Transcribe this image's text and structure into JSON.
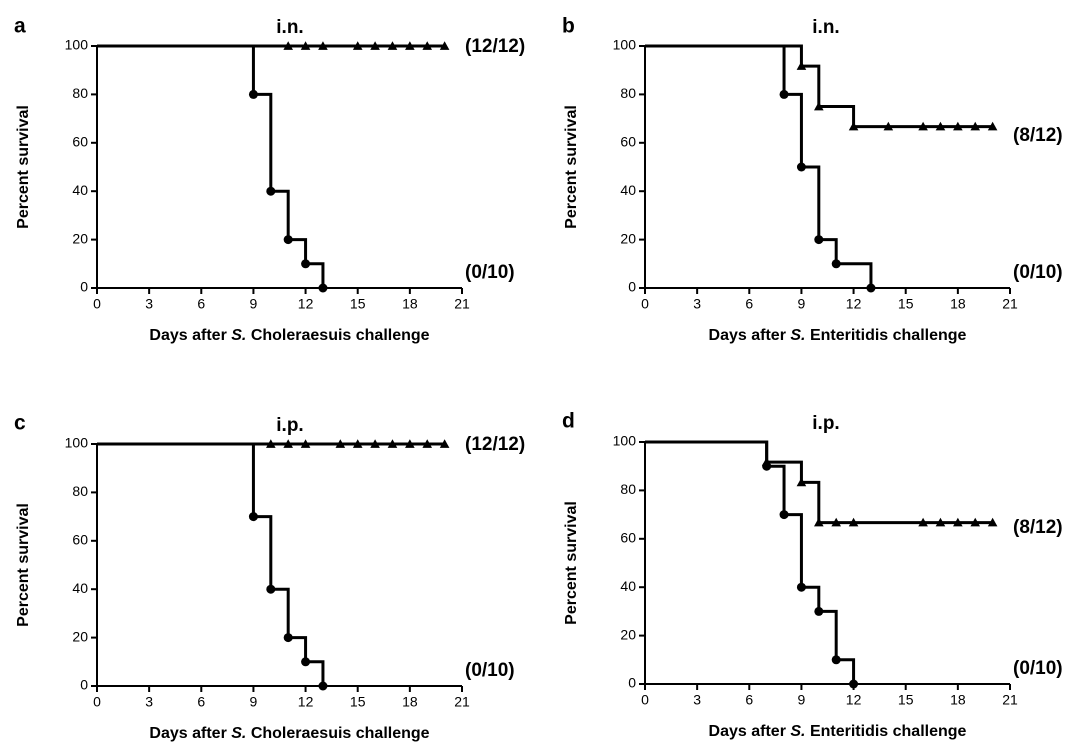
{
  "chart_data": [
    {
      "panel": "a",
      "type": "line",
      "title": "i.n.",
      "xlabel_parts": [
        "Days after ",
        "S.",
        " Choleraesuis challenge"
      ],
      "ylabel": "Percent survival",
      "xlim": [
        0,
        21
      ],
      "ylim": [
        0,
        100
      ],
      "xticks": [
        0,
        3,
        6,
        9,
        12,
        15,
        18,
        21
      ],
      "yticks": [
        0,
        20,
        40,
        60,
        80,
        100
      ],
      "series": [
        {
          "marker": "triangle",
          "steps": [
            [
              0,
              100
            ],
            [
              20,
              100
            ]
          ],
          "markers_x": [
            11,
            12,
            13,
            15,
            16,
            17,
            18,
            19,
            20
          ],
          "annotation": "(12/12)"
        },
        {
          "marker": "circle",
          "steps": [
            [
              0,
              100
            ],
            [
              9,
              80
            ],
            [
              10,
              40
            ],
            [
              11,
              20
            ],
            [
              12,
              10
            ],
            [
              13,
              0
            ]
          ],
          "markers": [
            [
              9,
              80
            ],
            [
              10,
              40
            ],
            [
              11,
              20
            ],
            [
              12,
              10
            ],
            [
              13,
              0
            ]
          ],
          "annotation": "(0/10)"
        }
      ]
    },
    {
      "panel": "b",
      "type": "line",
      "title": "i.n.",
      "xlabel_parts": [
        "Days after ",
        "S.",
        " Enteritidis challenge"
      ],
      "ylabel": "Percent survival",
      "xlim": [
        0,
        21
      ],
      "ylim": [
        0,
        100
      ],
      "xticks": [
        0,
        3,
        6,
        9,
        12,
        15,
        18,
        21
      ],
      "yticks": [
        0,
        20,
        40,
        60,
        80,
        100
      ],
      "series": [
        {
          "marker": "triangle",
          "steps": [
            [
              0,
              100
            ],
            [
              9,
              91.7
            ],
            [
              10,
              75
            ],
            [
              12,
              66.7
            ],
            [
              20,
              66.7
            ]
          ],
          "markers": [
            [
              9,
              91.7
            ],
            [
              10,
              75
            ],
            [
              12,
              66.7
            ],
            [
              14,
              66.7
            ],
            [
              16,
              66.7
            ],
            [
              17,
              66.7
            ],
            [
              18,
              66.7
            ],
            [
              19,
              66.7
            ],
            [
              20,
              66.7
            ]
          ],
          "annotation": "(8/12)"
        },
        {
          "marker": "circle",
          "steps": [
            [
              0,
              100
            ],
            [
              8,
              80
            ],
            [
              9,
              50
            ],
            [
              10,
              20
            ],
            [
              11,
              10
            ],
            [
              13,
              0
            ]
          ],
          "markers": [
            [
              8,
              80
            ],
            [
              9,
              50
            ],
            [
              10,
              20
            ],
            [
              11,
              10
            ],
            [
              13,
              0
            ]
          ],
          "annotation": "(0/10)"
        }
      ]
    },
    {
      "panel": "c",
      "type": "line",
      "title": "i.p.",
      "xlabel_parts": [
        "Days after ",
        "S.",
        " Choleraesuis challenge"
      ],
      "ylabel": "Percent survival",
      "xlim": [
        0,
        21
      ],
      "ylim": [
        0,
        100
      ],
      "xticks": [
        0,
        3,
        6,
        9,
        12,
        15,
        18,
        21
      ],
      "yticks": [
        0,
        20,
        40,
        60,
        80,
        100
      ],
      "series": [
        {
          "marker": "triangle",
          "steps": [
            [
              0,
              100
            ],
            [
              20,
              100
            ]
          ],
          "markers_x": [
            10,
            11,
            12,
            14,
            15,
            16,
            17,
            18,
            19,
            20
          ],
          "annotation": "(12/12)"
        },
        {
          "marker": "circle",
          "steps": [
            [
              0,
              100
            ],
            [
              9,
              70
            ],
            [
              10,
              40
            ],
            [
              11,
              20
            ],
            [
              12,
              10
            ],
            [
              13,
              0
            ]
          ],
          "markers": [
            [
              9,
              70
            ],
            [
              10,
              40
            ],
            [
              11,
              20
            ],
            [
              12,
              10
            ],
            [
              13,
              0
            ]
          ],
          "annotation": "(0/10)"
        }
      ]
    },
    {
      "panel": "d",
      "type": "line",
      "title": "i.p.",
      "xlabel_parts": [
        "Days after ",
        "S.",
        " Enteritidis challenge"
      ],
      "ylabel": "Percent survival",
      "xlim": [
        0,
        21
      ],
      "ylim": [
        0,
        100
      ],
      "xticks": [
        0,
        3,
        6,
        9,
        12,
        15,
        18,
        21
      ],
      "yticks": [
        0,
        20,
        40,
        60,
        80,
        100
      ],
      "series": [
        {
          "marker": "triangle",
          "steps": [
            [
              0,
              100
            ],
            [
              7,
              91.7
            ],
            [
              9,
              83.3
            ],
            [
              10,
              66.7
            ],
            [
              20,
              66.7
            ]
          ],
          "markers": [
            [
              7,
              91.7
            ],
            [
              9,
              83.3
            ],
            [
              10,
              66.7
            ],
            [
              11,
              66.7
            ],
            [
              12,
              66.7
            ],
            [
              16,
              66.7
            ],
            [
              17,
              66.7
            ],
            [
              18,
              66.7
            ],
            [
              19,
              66.7
            ],
            [
              20,
              66.7
            ]
          ],
          "annotation": "(8/12)"
        },
        {
          "marker": "circle",
          "steps": [
            [
              0,
              100
            ],
            [
              7,
              90
            ],
            [
              8,
              70
            ],
            [
              9,
              40
            ],
            [
              10,
              30
            ],
            [
              11,
              10
            ],
            [
              12,
              0
            ]
          ],
          "markers": [
            [
              7,
              90
            ],
            [
              8,
              70
            ],
            [
              9,
              40
            ],
            [
              10,
              30
            ],
            [
              11,
              10
            ],
            [
              12,
              0
            ]
          ],
          "annotation": "(0/10)"
        }
      ]
    }
  ]
}
